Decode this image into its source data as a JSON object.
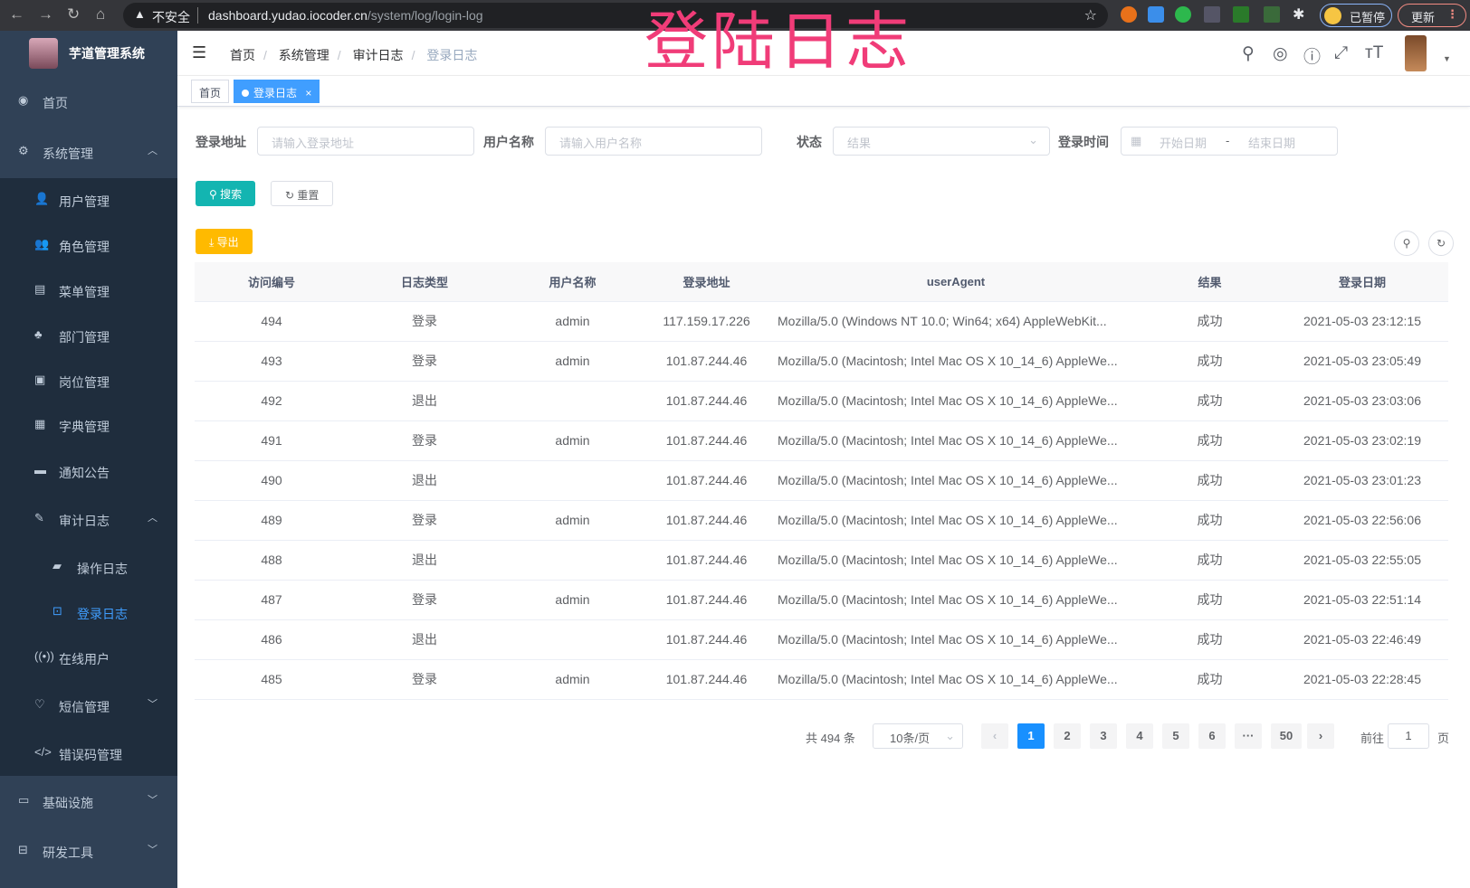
{
  "browser": {
    "insecure": "不安全",
    "url_host": "dashboard.yudao.iocoder.cn",
    "url_path": "/system/log/login-log",
    "paused": "已暂停",
    "update": "更新"
  },
  "watermark": "登陆日志",
  "app": {
    "title": "芋道管理系统"
  },
  "sidebar": {
    "items": [
      {
        "label": "首页",
        "icon": "dashboard-icon",
        "glyph": "◉"
      },
      {
        "label": "系统管理",
        "icon": "gear-icon",
        "glyph": "⚙",
        "arrow": "︿"
      },
      {
        "label": "用户管理",
        "icon": "user-icon",
        "glyph": "👤"
      },
      {
        "label": "角色管理",
        "icon": "peoples-icon",
        "glyph": "👥"
      },
      {
        "label": "菜单管理",
        "icon": "tree-table-icon",
        "glyph": "▤"
      },
      {
        "label": "部门管理",
        "icon": "tree-icon",
        "glyph": "♣"
      },
      {
        "label": "岗位管理",
        "icon": "post-icon",
        "glyph": "▣"
      },
      {
        "label": "字典管理",
        "icon": "dict-icon",
        "glyph": "▦"
      },
      {
        "label": "通知公告",
        "icon": "message-icon",
        "glyph": "▬"
      },
      {
        "label": "审计日志",
        "icon": "log-icon",
        "glyph": "✎",
        "arrow": "︿"
      },
      {
        "label": "操作日志",
        "icon": "form-icon",
        "glyph": "▰"
      },
      {
        "label": "登录日志",
        "icon": "logininfor-icon",
        "glyph": "⊡"
      },
      {
        "label": "在线用户",
        "icon": "online-icon",
        "glyph": "((•))"
      },
      {
        "label": "短信管理",
        "icon": "shield-icon",
        "glyph": "♡",
        "arrow": "﹀"
      },
      {
        "label": "错误码管理",
        "icon": "code-icon",
        "glyph": "</>"
      },
      {
        "label": "基础设施",
        "icon": "monitor-icon",
        "glyph": "▭",
        "arrow": "﹀"
      },
      {
        "label": "研发工具",
        "icon": "tool-icon",
        "glyph": "⊟",
        "arrow": "﹀"
      }
    ]
  },
  "breadcrumb": [
    "首页",
    "系统管理",
    "审计日志",
    "登录日志"
  ],
  "tags": {
    "home": "首页",
    "current": "登录日志",
    "close": "×"
  },
  "filters": {
    "ip_label": "登录地址",
    "ip_placeholder": "请输入登录地址",
    "user_label": "用户名称",
    "user_placeholder": "请输入用户名称",
    "status_label": "状态",
    "status_placeholder": "结果",
    "time_label": "登录时间",
    "start_placeholder": "开始日期",
    "range_sep": "-",
    "end_placeholder": "结束日期"
  },
  "buttons": {
    "search": "搜索",
    "reset": "重置",
    "export": "导出"
  },
  "table": {
    "columns": [
      "访问编号",
      "日志类型",
      "用户名称",
      "登录地址",
      "userAgent",
      "结果",
      "登录日期"
    ],
    "rows": [
      [
        "494",
        "登录",
        "admin",
        "117.159.17.226",
        "Mozilla/5.0 (Windows NT 10.0; Win64; x64) AppleWebKit...",
        "成功",
        "2021-05-03 23:12:15"
      ],
      [
        "493",
        "登录",
        "admin",
        "101.87.244.46",
        "Mozilla/5.0 (Macintosh; Intel Mac OS X 10_14_6) AppleWe...",
        "成功",
        "2021-05-03 23:05:49"
      ],
      [
        "492",
        "退出",
        "",
        "101.87.244.46",
        "Mozilla/5.0 (Macintosh; Intel Mac OS X 10_14_6) AppleWe...",
        "成功",
        "2021-05-03 23:03:06"
      ],
      [
        "491",
        "登录",
        "admin",
        "101.87.244.46",
        "Mozilla/5.0 (Macintosh; Intel Mac OS X 10_14_6) AppleWe...",
        "成功",
        "2021-05-03 23:02:19"
      ],
      [
        "490",
        "退出",
        "",
        "101.87.244.46",
        "Mozilla/5.0 (Macintosh; Intel Mac OS X 10_14_6) AppleWe...",
        "成功",
        "2021-05-03 23:01:23"
      ],
      [
        "489",
        "登录",
        "admin",
        "101.87.244.46",
        "Mozilla/5.0 (Macintosh; Intel Mac OS X 10_14_6) AppleWe...",
        "成功",
        "2021-05-03 22:56:06"
      ],
      [
        "488",
        "退出",
        "",
        "101.87.244.46",
        "Mozilla/5.0 (Macintosh; Intel Mac OS X 10_14_6) AppleWe...",
        "成功",
        "2021-05-03 22:55:05"
      ],
      [
        "487",
        "登录",
        "admin",
        "101.87.244.46",
        "Mozilla/5.0 (Macintosh; Intel Mac OS X 10_14_6) AppleWe...",
        "成功",
        "2021-05-03 22:51:14"
      ],
      [
        "486",
        "退出",
        "",
        "101.87.244.46",
        "Mozilla/5.0 (Macintosh; Intel Mac OS X 10_14_6) AppleWe...",
        "成功",
        "2021-05-03 22:46:49"
      ],
      [
        "485",
        "登录",
        "admin",
        "101.87.244.46",
        "Mozilla/5.0 (Macintosh; Intel Mac OS X 10_14_6) AppleWe...",
        "成功",
        "2021-05-03 22:28:45"
      ]
    ]
  },
  "pagination": {
    "total": "共 494 条",
    "page_size": "10条/页",
    "prev": "‹",
    "pages": [
      "1",
      "2",
      "3",
      "4",
      "5",
      "6",
      "···",
      "50"
    ],
    "current": "1",
    "next": "›",
    "goto_label": "前往",
    "goto_value": "1",
    "goto_suffix": "页"
  },
  "colors": {
    "sidebar": "#304156",
    "submenu": "#1f2d3d",
    "primary": "#409eff",
    "search": "#13b5b1",
    "export": "#ffba00",
    "watermark": "#f03c78"
  }
}
